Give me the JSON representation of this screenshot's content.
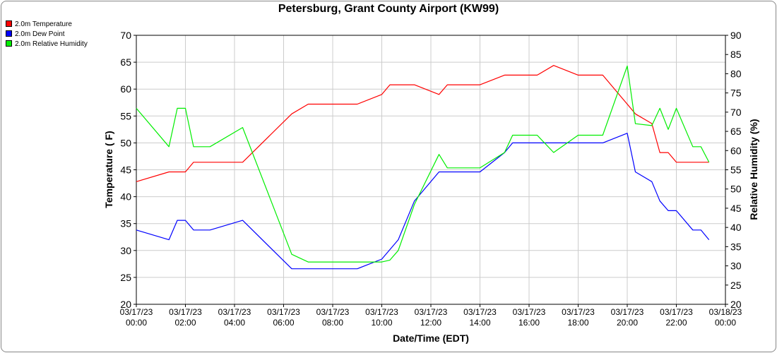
{
  "chart_data": {
    "type": "line",
    "title": "Petersburg, Grant County Airport (KW99)",
    "xlabel": "Date/Time (EDT)",
    "ylabel": "Temperature ( F)",
    "y2label": "Relative Humidity (%)",
    "xlim": [
      0,
      24
    ],
    "ylim": [
      20,
      70
    ],
    "y2lim": [
      20,
      90
    ],
    "x_ticks": [
      {
        "pos": 0,
        "date": "03/17/23",
        "time": "00:00"
      },
      {
        "pos": 2,
        "date": "03/17/23",
        "time": "02:00"
      },
      {
        "pos": 4,
        "date": "03/17/23",
        "time": "04:00"
      },
      {
        "pos": 6,
        "date": "03/17/23",
        "time": "06:00"
      },
      {
        "pos": 8,
        "date": "03/17/23",
        "time": "08:00"
      },
      {
        "pos": 10,
        "date": "03/17/23",
        "time": "10:00"
      },
      {
        "pos": 12,
        "date": "03/17/23",
        "time": "12:00"
      },
      {
        "pos": 14,
        "date": "03/17/23",
        "time": "14:00"
      },
      {
        "pos": 16,
        "date": "03/17/23",
        "time": "16:00"
      },
      {
        "pos": 18,
        "date": "03/17/23",
        "time": "18:00"
      },
      {
        "pos": 20,
        "date": "03/17/23",
        "time": "20:00"
      },
      {
        "pos": 22,
        "date": "03/17/23",
        "time": "22:00"
      },
      {
        "pos": 24,
        "date": "03/18/23",
        "time": "00:00"
      }
    ],
    "y_ticks": [
      20,
      25,
      30,
      35,
      40,
      45,
      50,
      55,
      60,
      65,
      70
    ],
    "y2_ticks": [
      20,
      25,
      30,
      35,
      40,
      45,
      50,
      55,
      60,
      65,
      70,
      75,
      80,
      85,
      90
    ],
    "grid": true,
    "legend_position": "top-left",
    "series": [
      {
        "name": "2.0m Temperature",
        "color": "#ff0000",
        "axis": "left",
        "x": [
          0,
          1.33,
          2.0,
          2.33,
          3.0,
          4.33,
          6.33,
          7.0,
          8.0,
          9.0,
          10.0,
          10.33,
          11.33,
          12.33,
          12.67,
          13.0,
          14.0,
          15.0,
          16.0,
          16.33,
          17.0,
          18.0,
          19.0,
          20.0,
          20.33,
          21.0,
          21.33,
          21.67,
          22.0,
          23.0,
          23.33
        ],
        "y": [
          42.8,
          44.6,
          44.6,
          46.4,
          46.4,
          46.4,
          55.4,
          57.2,
          57.2,
          57.2,
          59.0,
          60.8,
          60.8,
          59.0,
          60.8,
          60.8,
          60.8,
          62.6,
          62.6,
          62.6,
          64.4,
          62.6,
          62.6,
          57.2,
          55.4,
          53.6,
          48.2,
          48.2,
          46.4,
          46.4,
          46.4
        ]
      },
      {
        "name": "2.0m Dew Point",
        "color": "#0000ff",
        "axis": "left",
        "x": [
          0,
          1.33,
          1.67,
          2.0,
          2.33,
          3.0,
          4.33,
          6.33,
          7.0,
          8.0,
          9.0,
          10.0,
          10.67,
          11.33,
          12.33,
          13.0,
          14.0,
          15.0,
          15.33,
          16.0,
          17.0,
          18.0,
          19.0,
          20.0,
          20.33,
          21.0,
          21.33,
          21.67,
          22.0,
          22.67,
          23.0,
          23.33
        ],
        "y": [
          33.8,
          32.0,
          35.6,
          35.6,
          33.8,
          33.8,
          35.6,
          26.6,
          26.6,
          26.6,
          26.6,
          28.4,
          32.0,
          39.2,
          44.6,
          44.6,
          44.6,
          48.2,
          50.0,
          50.0,
          50.0,
          50.0,
          50.0,
          51.8,
          44.6,
          42.8,
          39.2,
          37.4,
          37.4,
          33.8,
          33.8,
          32.0
        ]
      },
      {
        "name": "2.0m Relative Humidity",
        "color": "#00ee00",
        "axis": "right",
        "x": [
          0,
          1.33,
          1.67,
          2.0,
          2.33,
          3.0,
          4.33,
          6.33,
          7.0,
          8.0,
          9.0,
          10.0,
          10.33,
          10.67,
          11.33,
          12.33,
          12.67,
          13.0,
          14.0,
          15.0,
          15.33,
          16.0,
          16.33,
          17.0,
          18.0,
          19.0,
          20.0,
          20.33,
          21.0,
          21.33,
          21.67,
          22.0,
          22.67,
          23.0,
          23.33
        ],
        "y": [
          71,
          61,
          71,
          71,
          61,
          61,
          66,
          33,
          31,
          31,
          31,
          31,
          31.5,
          34,
          46,
          59,
          55.5,
          55.5,
          55.5,
          59.5,
          64,
          64,
          64,
          59.5,
          64,
          64,
          82,
          67,
          66.5,
          71,
          65.5,
          71,
          61,
          61,
          57
        ]
      }
    ]
  }
}
